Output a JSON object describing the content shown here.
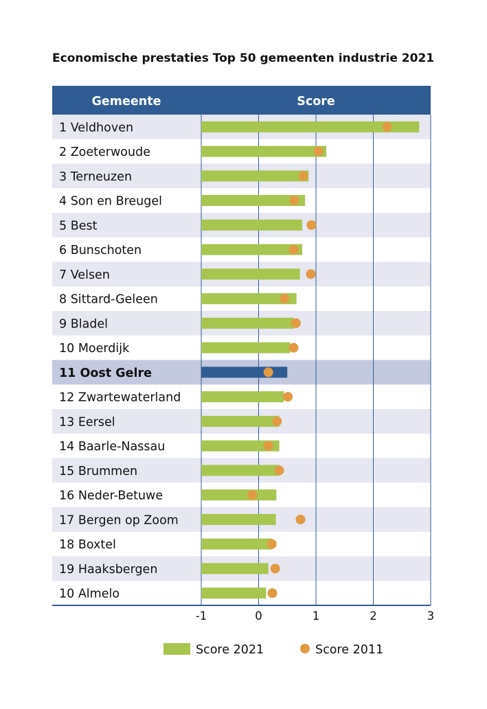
{
  "colors": {
    "header_bg": "#2F5D93",
    "row_alt": "#E6E7F1",
    "row_highlight": "#C3C9DF",
    "bar_2021": "#A7C64F",
    "bar_highlight": "#2F5D93",
    "dot_2011": "#E29A43",
    "grid": "#2F5D93"
  },
  "chart_data": {
    "type": "bar",
    "orientation": "horizontal",
    "title": "Economische prestaties Top 50 gemeenten industrie 2021",
    "column_headers": [
      "Gemeente",
      "Score"
    ],
    "categories": [
      "1 Veldhoven",
      "2 Zoeterwoude",
      "3 Terneuzen",
      "4 Son en Breugel",
      "5 Best",
      "6 Bunschoten",
      "7 Velsen",
      "8 Sittard-Geleen",
      "9 Bladel",
      "10 Moerdijk",
      "11 Oost Gelre",
      "12 Zwartewaterland",
      "13 Eersel",
      "14 Baarle-Nassau",
      "15 Brummen",
      "16 Neder-Betuwe",
      "17 Bergen op Zoom",
      "18 Boxtel",
      "19 Haaksbergen",
      "10 Almelo"
    ],
    "highlight_index": 10,
    "series": [
      {
        "name": "Score 2021",
        "style": "bar",
        "values": [
          2.8,
          1.18,
          0.87,
          0.81,
          0.76,
          0.76,
          0.72,
          0.66,
          0.62,
          0.55,
          0.5,
          0.44,
          0.36,
          0.36,
          0.36,
          0.31,
          0.3,
          0.24,
          0.17,
          0.13
        ]
      },
      {
        "name": "Score 2011",
        "style": "dot",
        "values": [
          2.24,
          1.04,
          0.78,
          0.62,
          0.92,
          0.61,
          0.91,
          0.45,
          0.65,
          0.61,
          0.17,
          0.51,
          0.32,
          0.17,
          0.36,
          -0.11,
          0.73,
          0.23,
          0.29,
          0.24
        ]
      }
    ],
    "x_ticks": [
      "-1",
      "0",
      "1",
      "2",
      "3"
    ],
    "xlim": [
      -1,
      3
    ],
    "grid": true,
    "legend_position": "bottom"
  }
}
